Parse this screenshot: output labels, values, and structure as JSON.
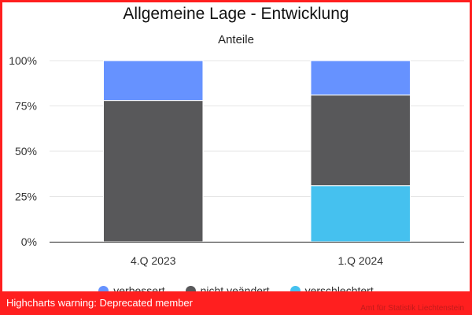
{
  "warning": "Highcharts warning: Deprecated member",
  "credits": "Amt für Statistik Liechtenstein",
  "chart_data": {
    "type": "bar",
    "stacked": true,
    "stack_mode": "percent",
    "title": "Allgemeine Lage - Entwicklung",
    "subtitle": "Anteile",
    "categories": [
      "4.Q 2023",
      "1.Q 2024"
    ],
    "ylim": [
      0,
      100
    ],
    "yticks": [
      "0%",
      "25%",
      "50%",
      "75%",
      "100%"
    ],
    "grid": true,
    "legend_position": "bottom",
    "series": [
      {
        "name": "verbessert",
        "color": "#6692ff",
        "values": [
          22,
          19
        ]
      },
      {
        "name": "nicht veändert",
        "color": "#58585a",
        "values": [
          78,
          50
        ]
      },
      {
        "name": "verschlechtert",
        "color": "#45c1ef",
        "values": [
          0,
          31
        ]
      }
    ]
  }
}
